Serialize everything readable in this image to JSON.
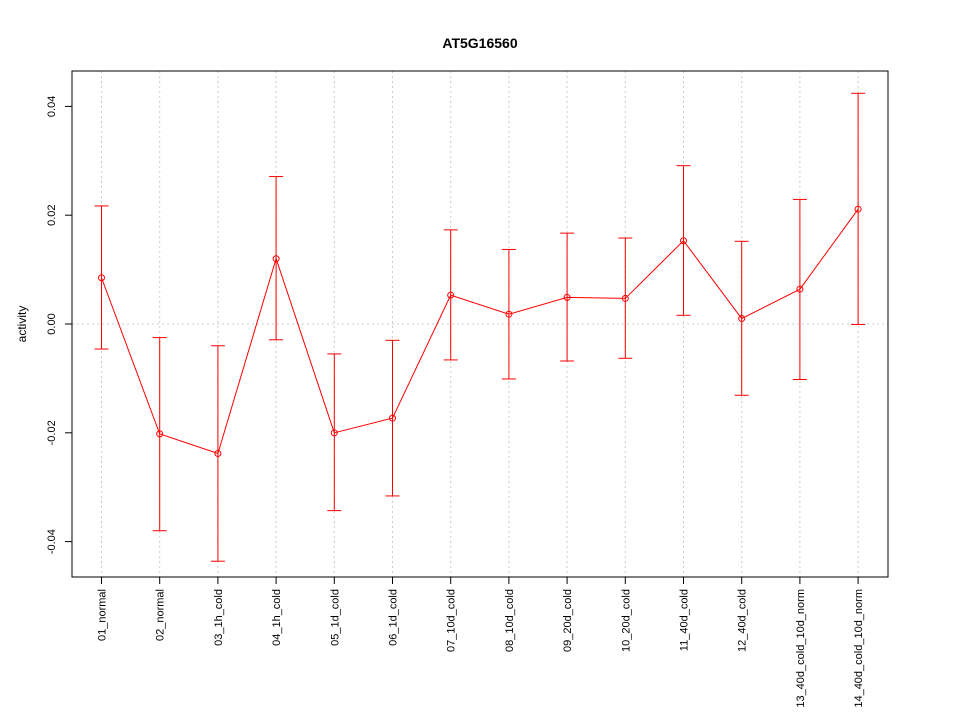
{
  "chart_data": {
    "type": "line",
    "title": "AT5G16560",
    "xlabel": "",
    "ylabel": "activity",
    "ylim": [
      -0.0465,
      0.0465
    ],
    "yticks": [
      -0.04,
      -0.02,
      0.0,
      0.02,
      0.04
    ],
    "ytick_labels": [
      "-0.04",
      "-0.02",
      "0.00",
      "0.02",
      "0.04"
    ],
    "grid": true,
    "categories": [
      "01_normal",
      "02_normal",
      "03_1h_cold",
      "04_1h_cold",
      "05_1d_cold",
      "06_1d_cold",
      "07_10d_cold",
      "08_10d_cold",
      "09_20d_cold",
      "10_20d_cold",
      "11_40d_cold",
      "12_40d_cold",
      "13_40d_cold_10d_norm",
      "14_40d_cold_10d_norm"
    ],
    "series": [
      {
        "color": "#ff0000",
        "values": [
          0.0085,
          -0.0202,
          -0.0238,
          0.012,
          -0.02,
          -0.0173,
          0.0053,
          0.0018,
          0.0049,
          0.0047,
          0.0153,
          0.001,
          0.0064,
          0.0211
        ],
        "upper": [
          0.0217,
          -0.0025,
          -0.004,
          0.0271,
          -0.0055,
          -0.003,
          0.0173,
          0.0137,
          0.0167,
          0.0158,
          0.0291,
          0.0152,
          0.0229,
          0.0424
        ],
        "lower": [
          -0.0046,
          -0.038,
          -0.0436,
          -0.0029,
          -0.0343,
          -0.0316,
          -0.0066,
          -0.0101,
          -0.0068,
          -0.0063,
          0.0016,
          -0.0131,
          -0.0102,
          -0.0001
        ]
      }
    ]
  }
}
